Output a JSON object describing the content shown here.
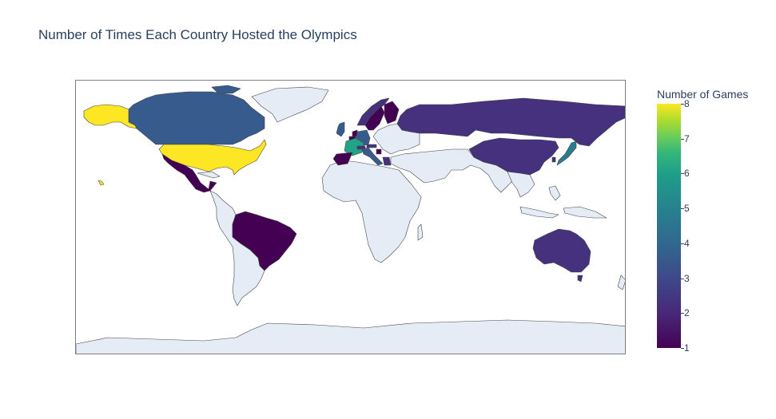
{
  "title": "Number of Times Each Country Hosted the Olympics",
  "chart_data": {
    "type": "choropleth",
    "title": "Number of Times Each Country Hosted the Olympics",
    "colorbar": {
      "title": "Number of Games",
      "range": [
        1,
        8
      ],
      "ticks": [
        "1",
        "2",
        "3",
        "4",
        "5",
        "6",
        "7",
        "8"
      ],
      "colorscale": "Viridis"
    },
    "projection": "equirectangular",
    "land_color": "#e5ecf6",
    "countries": [
      {
        "name": "United States",
        "value": 8
      },
      {
        "name": "France",
        "value": 5
      },
      {
        "name": "Japan",
        "value": 4
      },
      {
        "name": "Canada",
        "value": 3
      },
      {
        "name": "Germany",
        "value": 3
      },
      {
        "name": "Italy",
        "value": 3
      },
      {
        "name": "United Kingdom",
        "value": 3
      },
      {
        "name": "Australia",
        "value": 2
      },
      {
        "name": "Russia",
        "value": 2
      },
      {
        "name": "China",
        "value": 2
      },
      {
        "name": "Norway",
        "value": 2
      },
      {
        "name": "Switzerland",
        "value": 2
      },
      {
        "name": "Austria",
        "value": 2
      },
      {
        "name": "Greece",
        "value": 2
      },
      {
        "name": "South Korea",
        "value": 2
      },
      {
        "name": "Brazil",
        "value": 1
      },
      {
        "name": "Mexico",
        "value": 1
      },
      {
        "name": "Spain",
        "value": 1
      },
      {
        "name": "Sweden",
        "value": 1
      },
      {
        "name": "Finland",
        "value": 1
      },
      {
        "name": "Netherlands",
        "value": 1
      },
      {
        "name": "Belgium",
        "value": 1
      },
      {
        "name": "Bosnia and Herzegovina",
        "value": 1
      }
    ]
  }
}
